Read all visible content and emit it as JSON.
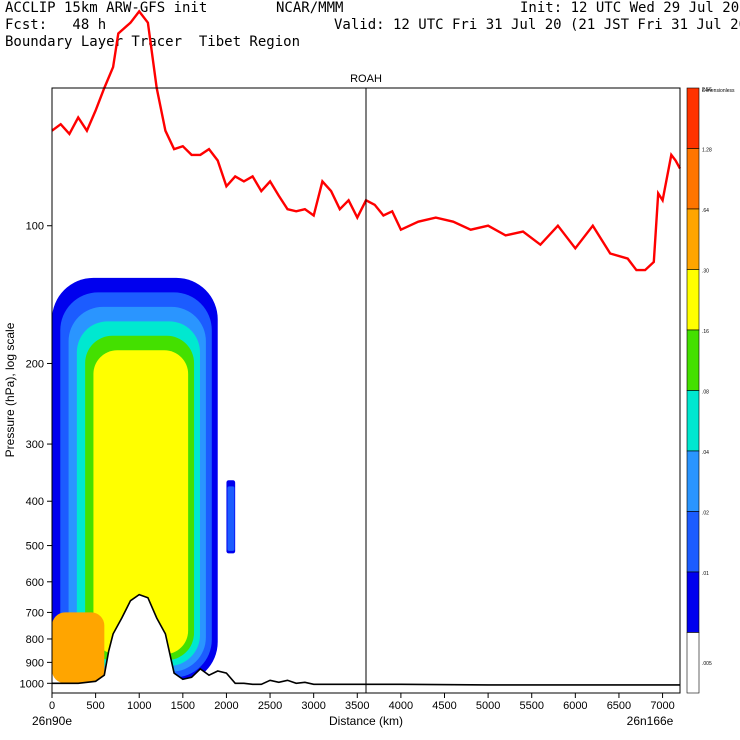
{
  "header": {
    "line1_left": "ACCLIP 15km ARW-GFS init",
    "line1_mid": "NCAR/MMM",
    "line1_right": "Init: 12 UTC Wed 29 Jul 20",
    "line2_left": "Fcst:   48 h",
    "line2_right": "Valid: 12 UTC Fri 31 Jul 20 (21 JST Fri 31 Jul 20)",
    "line3_left": "Boundary Layer Tracer  Tibet Region"
  },
  "chart_data": {
    "type": "heatmap",
    "title": "ROAH",
    "xlabel": "Distance (km)",
    "ylabel": "Pressure (hPa), log scale",
    "xlim": [
      0,
      7200
    ],
    "ylim": [
      1050,
      50
    ],
    "y_scale": "log",
    "x_ticks": [
      0,
      500,
      1000,
      1500,
      2000,
      2500,
      3000,
      3500,
      4000,
      4500,
      5000,
      5500,
      6000,
      6500,
      7000
    ],
    "y_ticks": [
      100,
      200,
      300,
      400,
      500,
      600,
      700,
      800,
      900,
      1000
    ],
    "x_endpoint_labels": {
      "left": "26n90e",
      "right": "26n166e"
    },
    "vertical_marker_x": 3600,
    "colorbar": {
      "labels": [
        ".005",
        ".01",
        ".02",
        ".04",
        ".08",
        ".16",
        ".30",
        ".64",
        "1.28",
        "2.56",
        "Dimensionless"
      ],
      "colors": [
        "#ffffff",
        "#0000ee",
        "#1c5cff",
        "#2a95ff",
        "#00e8d0",
        "#44e000",
        "#ffff00",
        "#ffa500",
        "#ff7500",
        "#ff3300"
      ]
    },
    "tracer_field": {
      "description_free": true,
      "blobs": [
        {
          "x": [
            0,
            1900
          ],
          "p_top": 130,
          "p_bottom": 1000,
          "levels": [
            1,
            2,
            3,
            4,
            5,
            6
          ]
        },
        {
          "x": [
            0,
            600
          ],
          "p_top": 700,
          "p_bottom": 1000,
          "levels": [
            7
          ]
        },
        {
          "x": [
            2000,
            2100
          ],
          "p_top": 360,
          "p_bottom": 520,
          "levels": [
            1,
            2
          ]
        }
      ]
    },
    "tropopause_line": {
      "color": "#ff0000",
      "x": [
        0,
        100,
        200,
        300,
        400,
        500,
        600,
        700,
        760,
        900,
        1000,
        1100,
        1200,
        1300,
        1400,
        1500,
        1600,
        1700,
        1800,
        1900,
        2000,
        2100,
        2200,
        2300,
        2400,
        2500,
        2600,
        2700,
        2800,
        2900,
        3000,
        3100,
        3200,
        3300,
        3400,
        3500,
        3600,
        3700,
        3800,
        3900,
        4000,
        4200,
        4400,
        4600,
        4800,
        5000,
        5200,
        5400,
        5600,
        5800,
        6000,
        6200,
        6400,
        6600,
        6700,
        6800,
        6900,
        6950,
        7000,
        7100,
        7150,
        7200
      ],
      "y": [
        62,
        60,
        63,
        58,
        62,
        56,
        50,
        45,
        38,
        36,
        34,
        36,
        50,
        62,
        68,
        67,
        70,
        70,
        68,
        72,
        82,
        78,
        80,
        78,
        84,
        80,
        86,
        92,
        93,
        92,
        95,
        80,
        84,
        92,
        88,
        96,
        88,
        90,
        95,
        93,
        102,
        98,
        96,
        98,
        102,
        100,
        105,
        103,
        110,
        100,
        112,
        100,
        115,
        118,
        125,
        125,
        120,
        85,
        88,
        70,
        72,
        75
      ]
    },
    "terrain_line": {
      "color": "#000000",
      "x": [
        0,
        300,
        500,
        600,
        650,
        700,
        800,
        900,
        1000,
        1100,
        1200,
        1300,
        1400,
        1500,
        1600,
        1700,
        1800,
        1900,
        2000,
        2100,
        2200,
        2300,
        2400,
        2500,
        2600,
        2700,
        2800,
        2900,
        3000,
        3500,
        4000,
        5000,
        6000,
        7000,
        7200
      ],
      "y": [
        1000,
        1000,
        990,
        960,
        850,
        780,
        720,
        660,
        640,
        650,
        720,
        780,
        950,
        980,
        970,
        930,
        960,
        940,
        950,
        1000,
        1000,
        1005,
        1005,
        985,
        995,
        985,
        1000,
        995,
        1005,
        1005,
        1005,
        1008,
        1008,
        1008,
        1008
      ]
    }
  }
}
